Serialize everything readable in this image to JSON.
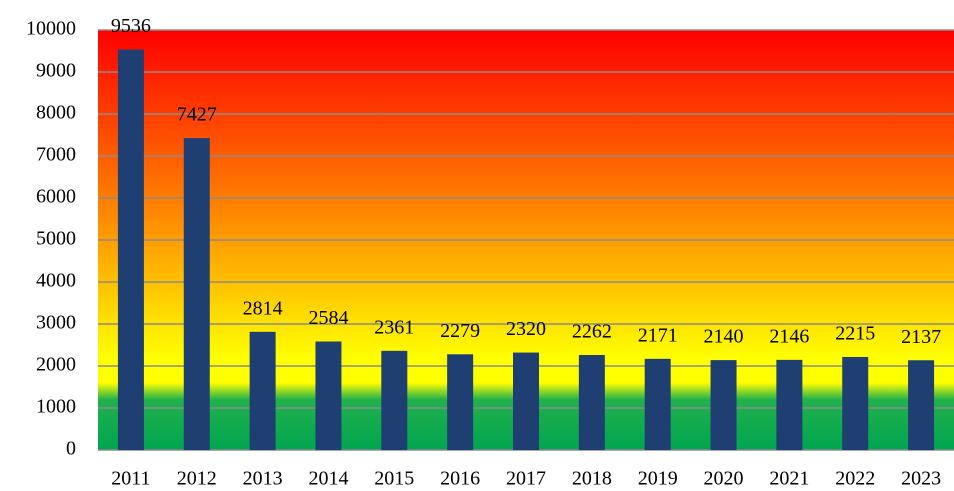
{
  "chart_data": {
    "type": "bar",
    "categories": [
      "2011",
      "2012",
      "2013",
      "2014",
      "2015",
      "2016",
      "2017",
      "2018",
      "2019",
      "2020",
      "2021",
      "2022",
      "2023"
    ],
    "values": [
      9536,
      7427,
      2814,
      2584,
      2361,
      2279,
      2320,
      2262,
      2171,
      2140,
      2146,
      2215,
      2137
    ],
    "color": "#1f3f73",
    "ylim": [
      0,
      10000
    ],
    "yticks": [
      0,
      1000,
      2000,
      3000,
      4000,
      5000,
      6000,
      7000,
      8000,
      9000,
      10000
    ],
    "grid": true
  }
}
